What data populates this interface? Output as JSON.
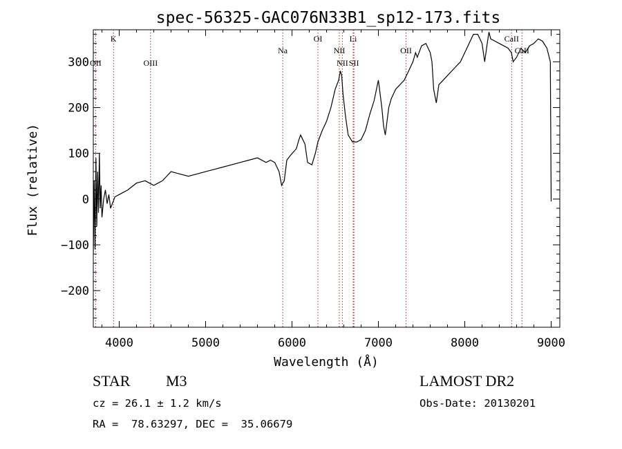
{
  "chart_data": {
    "type": "line",
    "title": "spec-56325-GAC076N33B1_sp12-173.fits",
    "xlabel": "Wavelength (Å)",
    "ylabel": "Flux (relative)",
    "xlim": [
      3700,
      9100
    ],
    "ylim": [
      -280,
      370
    ],
    "xticks": [
      4000,
      5000,
      6000,
      7000,
      8000,
      9000
    ],
    "yticks": [
      -200,
      -100,
      0,
      100,
      200,
      300
    ],
    "grid": false,
    "series": [
      {
        "values_note": "",
        "x": [
          3700,
          3710,
          3720,
          3730,
          3740,
          3750,
          3760,
          3770,
          3780,
          3790,
          3800,
          3820,
          3840,
          3860,
          3880,
          3900,
          3950,
          4000,
          4100,
          4200,
          4300,
          4400,
          4500,
          4600,
          4700,
          4800,
          4900,
          5000,
          5100,
          5200,
          5300,
          5400,
          5500,
          5600,
          5700,
          5750,
          5800,
          5850,
          5880,
          5910,
          5940,
          5980,
          6050,
          6080,
          6100,
          6150,
          6180,
          6230,
          6270,
          6300,
          6350,
          6400,
          6450,
          6500,
          6540,
          6560,
          6575,
          6590,
          6620,
          6650,
          6700,
          6750,
          6800,
          6850,
          6900,
          6950,
          7000,
          7040,
          7060,
          7080,
          7120,
          7150,
          7200,
          7300,
          7350,
          7400,
          7430,
          7450,
          7500,
          7550,
          7600,
          7620,
          7640,
          7670,
          7700,
          7750,
          7800,
          7850,
          7900,
          7950,
          8000,
          8050,
          8100,
          8150,
          8200,
          8230,
          8260,
          8280,
          8300,
          8350,
          8400,
          8450,
          8500,
          8540,
          8560,
          8600,
          8650,
          8700,
          8750,
          8800,
          8850,
          8900,
          8950,
          8990,
          9000
        ],
        "y": [
          -120,
          40,
          -110,
          90,
          -60,
          60,
          -30,
          100,
          -20,
          30,
          -40,
          0,
          20,
          -10,
          10,
          -20,
          5,
          10,
          20,
          35,
          40,
          30,
          40,
          60,
          55,
          50,
          55,
          60,
          65,
          70,
          75,
          80,
          85,
          90,
          80,
          85,
          80,
          60,
          30,
          40,
          85,
          95,
          110,
          130,
          140,
          120,
          80,
          75,
          100,
          125,
          150,
          170,
          200,
          240,
          260,
          280,
          270,
          230,
          180,
          140,
          125,
          125,
          130,
          150,
          185,
          215,
          260,
          200,
          160,
          140,
          200,
          220,
          240,
          260,
          280,
          300,
          320,
          310,
          335,
          340,
          320,
          300,
          240,
          210,
          250,
          260,
          270,
          280,
          290,
          300,
          320,
          340,
          360,
          360,
          340,
          300,
          340,
          365,
          350,
          345,
          340,
          335,
          330,
          320,
          300,
          310,
          330,
          320,
          335,
          340,
          350,
          345,
          330,
          300,
          -5
        ]
      }
    ],
    "lines": [
      {
        "label": "K",
        "x": 3934
      },
      {
        "label": "OIII",
        "x": 4363
      },
      {
        "label": "Na",
        "x": 5893
      },
      {
        "label": "OI",
        "x": 6300
      },
      {
        "label": "NII",
        "x": 6548
      },
      {
        "label": "Li",
        "x": 6708
      },
      {
        "label": "NII",
        "x": 6583
      },
      {
        "label": "SII",
        "x": 6717
      },
      {
        "label": "OII",
        "x": 7320
      },
      {
        "label": "CaII",
        "x": 8542
      },
      {
        "label": "CaII",
        "x": 8662
      },
      {
        "label": "OII",
        "x": 3727
      }
    ]
  },
  "footer": {
    "object_class": "STAR",
    "subclass": "M3",
    "survey": "LAMOST DR2",
    "cz": "cz = 26.1 ± 1.2 km/s",
    "obs_date": "Obs-Date: 20130201",
    "radec": "RA =  78.63297, DEC =  35.06679"
  }
}
